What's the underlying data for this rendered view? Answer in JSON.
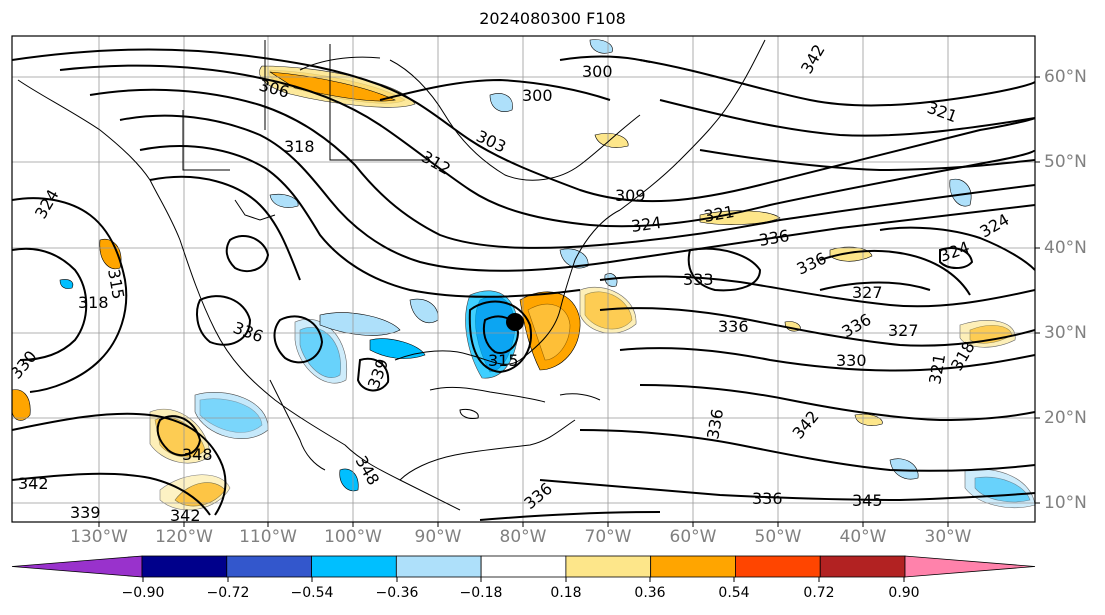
{
  "title": "2024080300 F108",
  "colors": {
    "frame": "#000000",
    "grid": "#999999",
    "contour": "#000000",
    "axis_label": "#808080"
  },
  "longitude_labels": [
    "130°W",
    "120°W",
    "110°W",
    "100°W",
    "90°W",
    "80°W",
    "70°W",
    "60°W",
    "50°W",
    "40°W",
    "30°W"
  ],
  "latitude_labels": [
    "60°N",
    "50°N",
    "40°N",
    "30°N",
    "20°N",
    "10°N"
  ],
  "contour_labels": [
    "306",
    "300",
    "300",
    "318",
    "303",
    "312",
    "309",
    "321",
    "324",
    "336",
    "315",
    "318",
    "324",
    "327",
    "336",
    "333",
    "336",
    "327",
    "336",
    "330",
    "339",
    "336",
    "342",
    "348",
    "342",
    "339",
    "342",
    "345",
    "336",
    "348",
    "315",
    "330",
    "324",
    "321",
    "324",
    "336",
    "321",
    "318",
    "336",
    "342"
  ],
  "colorbar": {
    "tick_labels": [
      "−0.90",
      "−0.72",
      "−0.54",
      "−0.36",
      "−0.18",
      "0.18",
      "0.36",
      "0.54",
      "0.72",
      "0.90"
    ],
    "colors": [
      "#9932cc",
      "#00008b",
      "#3357cc",
      "#00bfff",
      "#aee0fa",
      "#ffffff",
      "#fde68a",
      "#ffa500",
      "#ff4500",
      "#b22222",
      "#ff82ab"
    ]
  },
  "marker": "storm-center-dot"
}
